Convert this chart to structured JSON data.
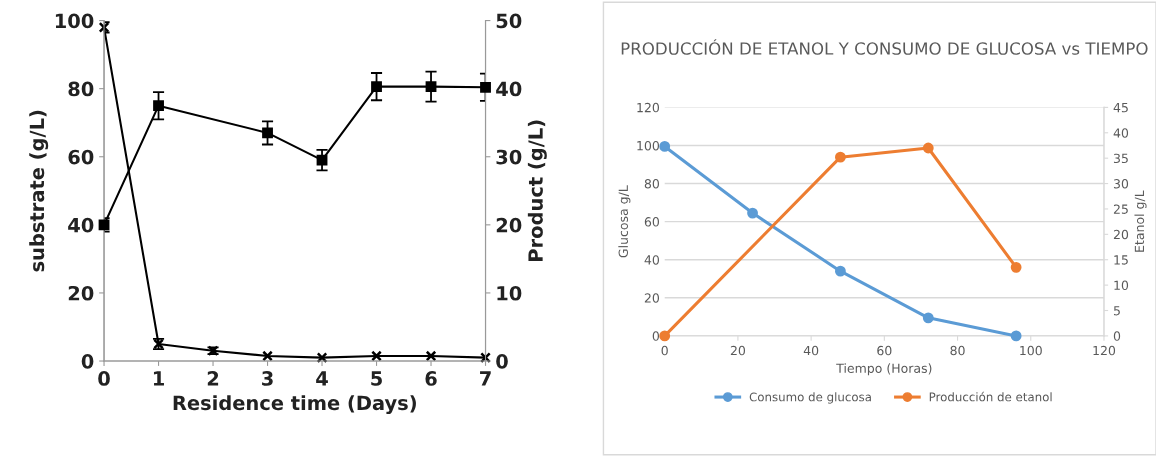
{
  "chart_data": [
    {
      "type": "line",
      "xlabel": "Residence time (Days)",
      "ylabel": "substrate (g/L)",
      "y2label": "Product (g/L)",
      "x": [
        0,
        1,
        2,
        3,
        4,
        5,
        6,
        7
      ],
      "xlim": [
        0,
        7
      ],
      "xticks": [
        0,
        1,
        2,
        3,
        4,
        5,
        6,
        7
      ],
      "ylim": [
        0,
        100
      ],
      "yticks": [
        0,
        20,
        40,
        60,
        80,
        100
      ],
      "y2lim": [
        0,
        50
      ],
      "y2ticks": [
        0,
        10,
        20,
        30,
        40,
        50
      ],
      "grid": false,
      "legend": false,
      "line_style": "solid",
      "series": [
        {
          "color": "#000000",
          "marker": "cross",
          "values": [
            98,
            5,
            3,
            1.5,
            1,
            1.5,
            1.5,
            1
          ],
          "errors": [
            1.5,
            1.5,
            1,
            null,
            null,
            null,
            null,
            null
          ]
        },
        {
          "color": "#000000",
          "marker": "square",
          "axis": "y2",
          "x": [
            0,
            1,
            3,
            4,
            5,
            6,
            7
          ],
          "values": [
            20,
            37.5,
            33.5,
            29.5,
            40.3,
            40.3,
            40.2
          ],
          "errors": [
            1,
            2,
            1.7,
            1.5,
            2,
            2.2,
            2
          ]
        }
      ]
    },
    {
      "type": "line",
      "title": "PRODUCCIÓN DE ETANOL Y CONSUMO DE GLUCOSA vs TIEMPO",
      "xlabel": "Tiempo (Horas)",
      "ylabel": "Glucosa g/L",
      "y2label": "Etanol g/L",
      "xlim": [
        0,
        120
      ],
      "xticks": [
        0,
        20,
        40,
        60,
        80,
        100,
        120
      ],
      "ylim": [
        0,
        120
      ],
      "yticks": [
        0,
        20,
        40,
        60,
        80,
        100,
        120
      ],
      "y2lim": [
        0,
        45
      ],
      "y2ticks": [
        0,
        5,
        10,
        15,
        20,
        25,
        30,
        35,
        40,
        45
      ],
      "grid": "y",
      "legend": "bottom",
      "line_style": "solid",
      "marker": "circle",
      "series": [
        {
          "name": "Consumo de glucosa",
          "color": "#5b9bd5",
          "x": [
            0,
            24,
            48,
            72,
            96
          ],
          "values": [
            99.5,
            64.5,
            34,
            9.5,
            0
          ]
        },
        {
          "name": "Producción de etanol",
          "color": "#ed7d31",
          "axis": "y2",
          "x": [
            0,
            48,
            72,
            96
          ],
          "values": [
            0,
            35.2,
            37,
            13.5
          ]
        }
      ]
    }
  ]
}
